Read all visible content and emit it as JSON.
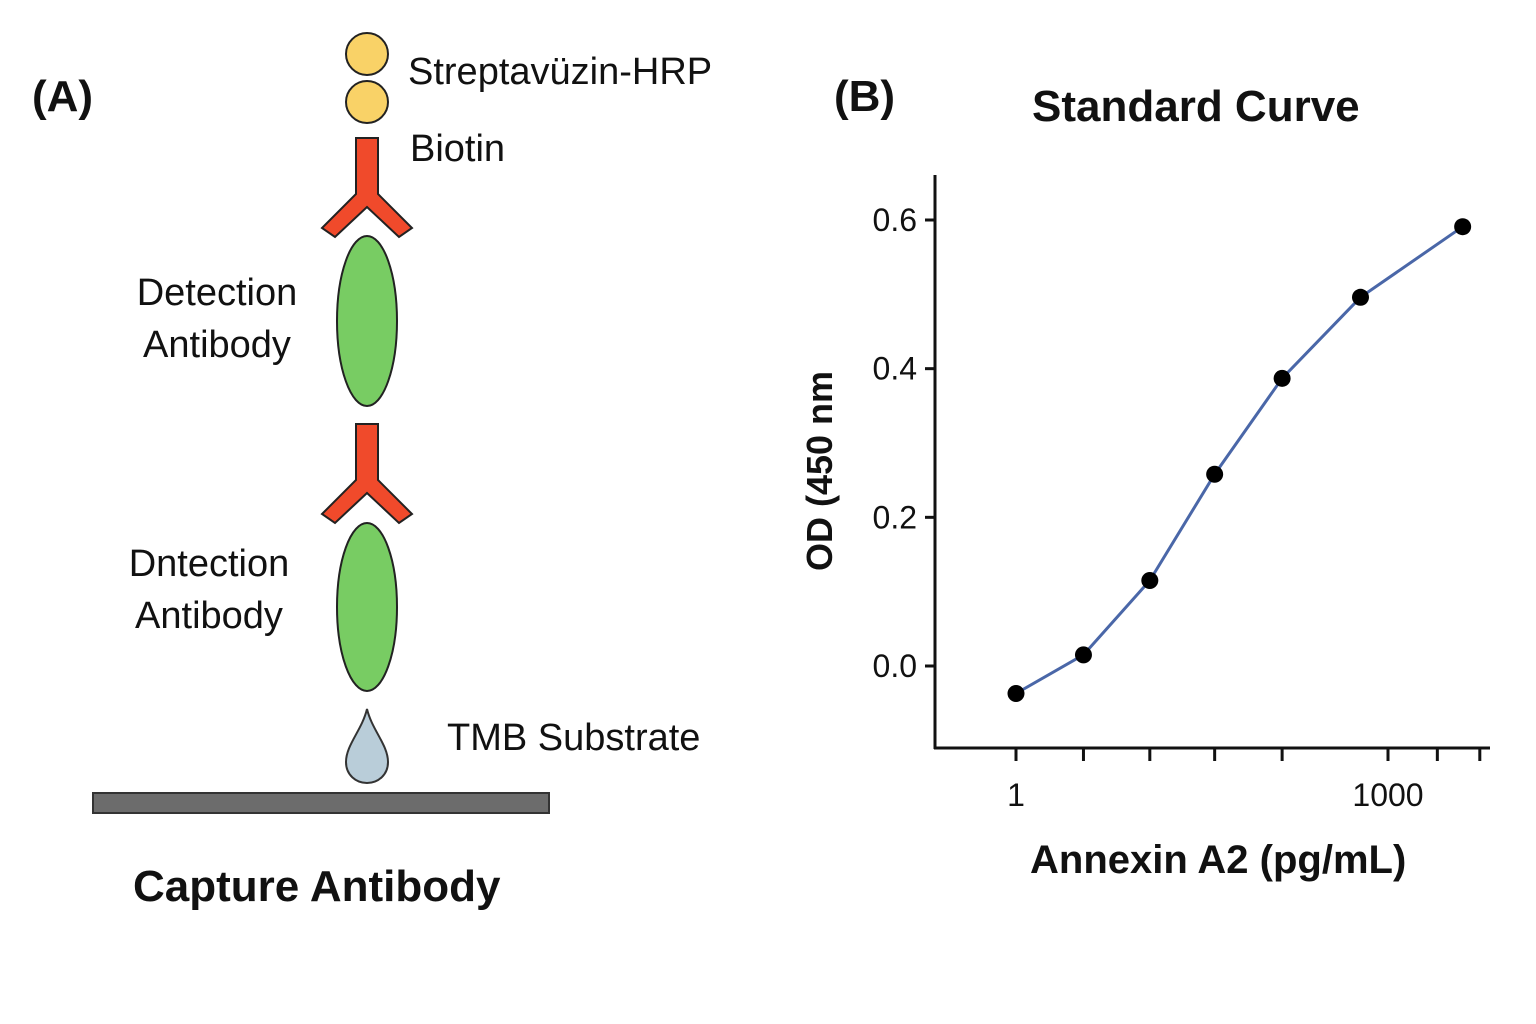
{
  "panel_a": {
    "label": "(A)",
    "streptavidin_label": "Streptavüzin-HRP",
    "biotin_label": "Biotin",
    "detection_label_1_line1": "Detection",
    "detection_label_1_line2": "Antibody",
    "detection_label_2_line1": "Dntection",
    "detection_label_2_line2": "Antibody",
    "tmb_label": "TMB Substrate",
    "capture_label": "Capture Antibody",
    "colors": {
      "streptavidin": "#f9d267",
      "antibody_y": "#f04a2b",
      "ellipse": "#78cc63",
      "drop": "#b9cdd9",
      "plate": "#6c6c6c"
    }
  },
  "panel_b": {
    "label": "(B)"
  },
  "chart_data": {
    "type": "line",
    "title": "Standard Curve",
    "xlabel": "Annexin A2 (pg/mL)",
    "ylabel": "OD (450 nm",
    "x_scale": "log",
    "x_tick_labels": [
      "1",
      "1000"
    ],
    "y_tick_labels": [
      "0.0",
      "0.2",
      "0.4",
      "0.6"
    ],
    "ylim": [
      -0.1,
      0.66
    ],
    "grid": false,
    "line_color": "#4a67a8",
    "marker_color": "#000000",
    "series": [
      {
        "x": [
          1,
          3.5,
          12,
          40,
          140,
          600,
          4000
        ],
        "y": [
          -0.037,
          0.015,
          0.115,
          0.258,
          0.387,
          0.496,
          0.591
        ]
      }
    ]
  }
}
